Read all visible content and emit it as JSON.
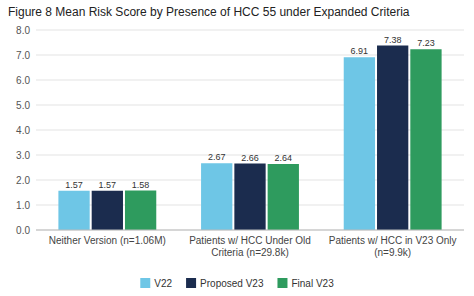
{
  "chart_data": {
    "type": "bar",
    "title": "Figure 8 Mean Risk Score by Presence of HCC 55 under Expanded Criteria",
    "categories": [
      "Neither Version (n=1.06M)",
      "Patients w/ HCC Under Old\nCriteria (n=29.8k)",
      "Patients w/ HCC in V23 Only\n(n=9.9k)"
    ],
    "series": [
      {
        "name": "V22",
        "color": "#6EC6E6",
        "values": [
          1.57,
          2.67,
          6.91
        ]
      },
      {
        "name": "Proposed V23",
        "color": "#1B2C4E",
        "values": [
          1.57,
          2.66,
          7.38
        ]
      },
      {
        "name": "Final V23",
        "color": "#2E9B5E",
        "values": [
          1.58,
          2.64,
          7.23
        ]
      }
    ],
    "ylim": [
      0,
      8.0
    ],
    "yticks": [
      {
        "value": 0.0,
        "label": "0.0"
      },
      {
        "value": 1.0,
        "label": "1.0"
      },
      {
        "value": 2.0,
        "label": "2.0"
      },
      {
        "value": 3.0,
        "label": "3.0"
      },
      {
        "value": 4.0,
        "label": "4.0"
      },
      {
        "value": 5.0,
        "label": "5.0"
      },
      {
        "value": 6.0,
        "label": "6.0"
      },
      {
        "value": 7.0,
        "label": "7.0"
      },
      {
        "value": 8.0,
        "label": "8.0"
      }
    ],
    "grid": true,
    "data_labels": true,
    "legend": "bottom"
  }
}
